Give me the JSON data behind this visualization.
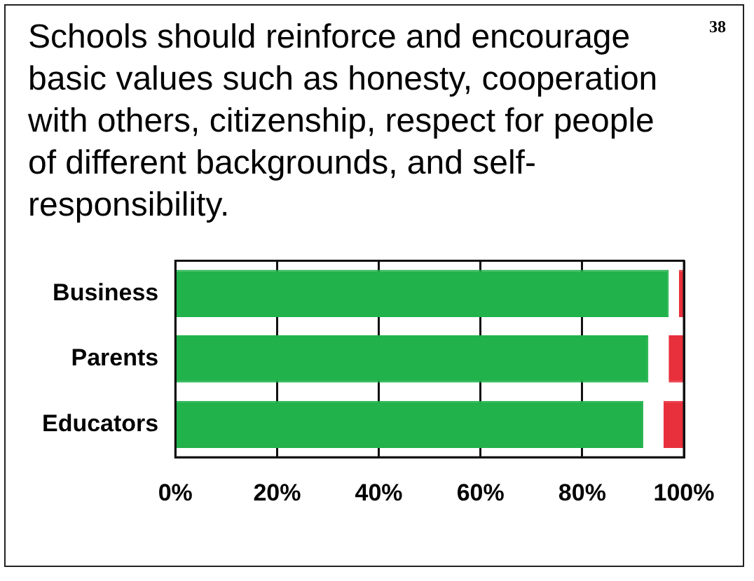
{
  "chart_data": {
    "type": "bar",
    "title": "Schools should reinforce and encourage basic values such as honesty, cooperation with others, citizenship, respect for people of different backgrounds, and self-responsibility.",
    "annotations": [
      "38"
    ],
    "orientation": "horizontal",
    "stacked": true,
    "categories": [
      "Business",
      "Parents",
      "Educators"
    ],
    "series": [
      {
        "color": "#21b24b",
        "values": [
          97,
          93,
          92
        ]
      },
      {
        "color": "#ffffff",
        "values": [
          2,
          4,
          4
        ]
      },
      {
        "color": "#e8303c",
        "values": [
          1,
          3,
          4
        ]
      }
    ],
    "xlim": [
      0,
      100
    ],
    "xticks": [
      {
        "value": 0,
        "label": "0%"
      },
      {
        "value": 20,
        "label": "20%"
      },
      {
        "value": 40,
        "label": "40%"
      },
      {
        "value": 60,
        "label": "60%"
      },
      {
        "value": 80,
        "label": "80%"
      },
      {
        "value": 100,
        "label": "100%"
      }
    ],
    "grid": "x",
    "legend": false
  }
}
